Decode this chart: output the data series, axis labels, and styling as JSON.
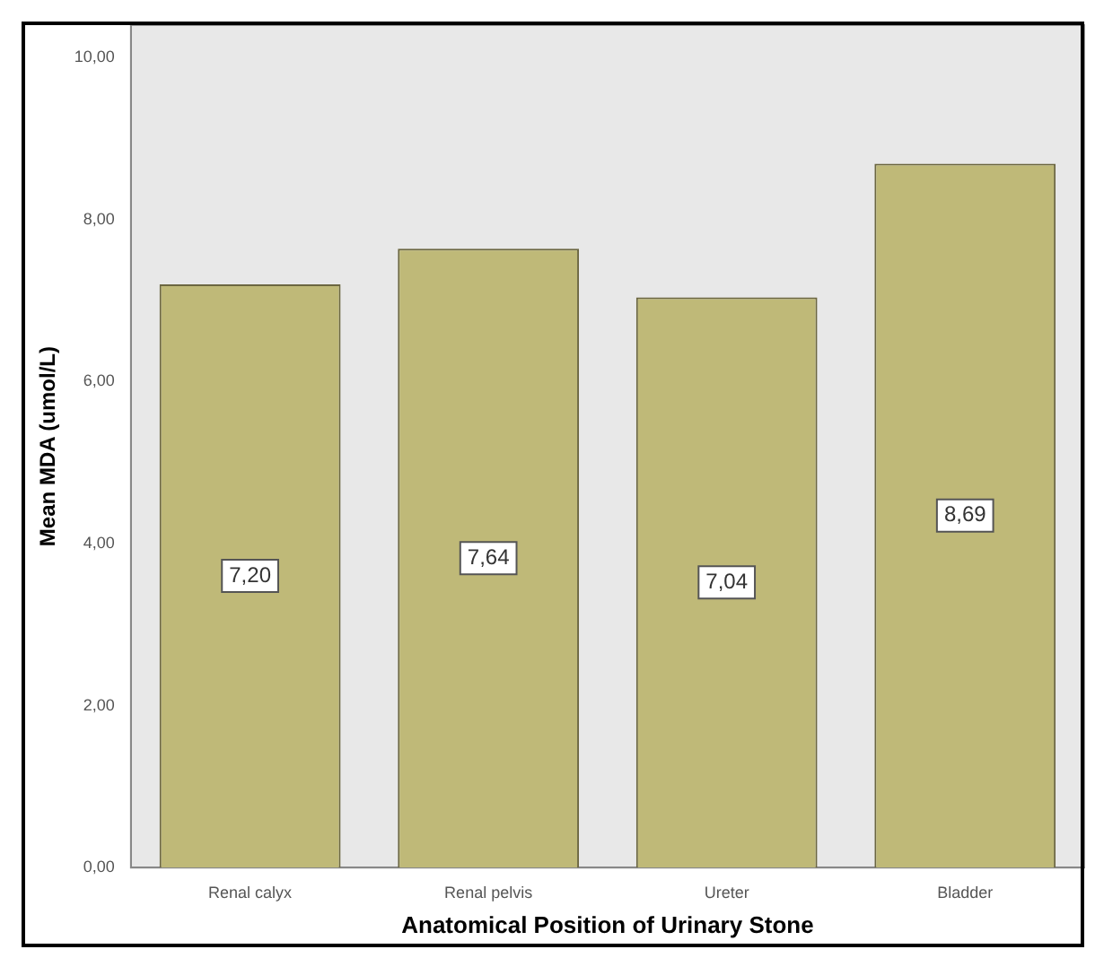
{
  "chart_data": {
    "type": "bar",
    "xlabel": "Anatomical Position of Urinary Stone",
    "ylabel": "Mean MDA (umol/L)",
    "categories": [
      "Renal calyx",
      "Renal pelvis",
      "Ureter",
      "Bladder"
    ],
    "values": [
      7.2,
      7.64,
      7.04,
      8.69
    ],
    "color": "#bfb978",
    "value_labels": [
      "7,20",
      "7,64",
      "7,04",
      "8,69"
    ],
    "ylim": [
      0,
      10.4
    ],
    "yticks": [
      {
        "value": 0,
        "label": "0,00"
      },
      {
        "value": 2,
        "label": "2,00"
      },
      {
        "value": 4,
        "label": "4,00"
      },
      {
        "value": 6,
        "label": "6,00"
      },
      {
        "value": 8,
        "label": "8,00"
      },
      {
        "value": 10,
        "label": "10,00"
      }
    ],
    "grid": false,
    "legend": false
  }
}
